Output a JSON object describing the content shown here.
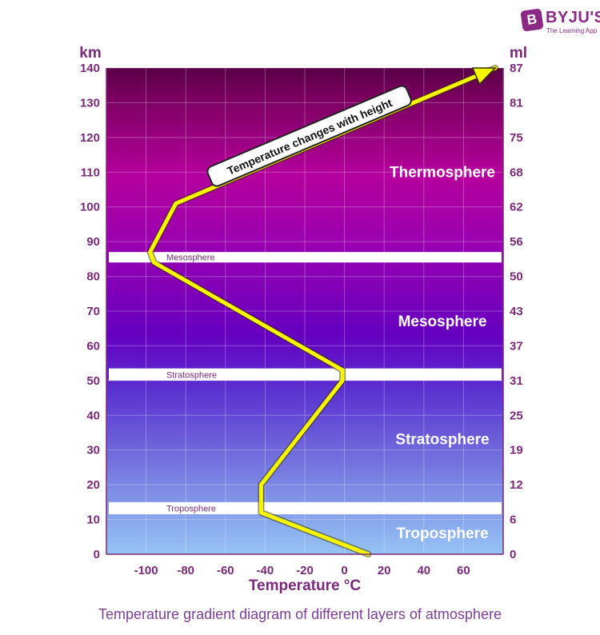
{
  "brand": {
    "name": "BYJU'S",
    "tagline": "The Learning App",
    "badge_letter": "B",
    "color": "#8a2a86"
  },
  "caption": "Temperature gradient diagram of different layers of atmosphere",
  "chart_data": {
    "type": "line",
    "xlabel": "Temperature °C",
    "ylabel_left": "km",
    "ylabel_right": "ml",
    "xlim": [
      -120,
      80
    ],
    "ylim": [
      0,
      140
    ],
    "x_ticks": [
      -100,
      -80,
      -60,
      -40,
      -20,
      0,
      20,
      40,
      60
    ],
    "y_ticks_left": [
      0,
      10,
      20,
      30,
      40,
      50,
      60,
      70,
      80,
      90,
      100,
      110,
      120,
      130,
      140
    ],
    "y_ticks_right": [
      {
        "km": 0,
        "label": "0"
      },
      {
        "km": 10,
        "label": "6"
      },
      {
        "km": 20,
        "label": "12"
      },
      {
        "km": 30,
        "label": "19"
      },
      {
        "km": 40,
        "label": "25"
      },
      {
        "km": 50,
        "label": "31"
      },
      {
        "km": 60,
        "label": "37"
      },
      {
        "km": 70,
        "label": "43"
      },
      {
        "km": 80,
        "label": "50"
      },
      {
        "km": 90,
        "label": "56"
      },
      {
        "km": 100,
        "label": "62"
      },
      {
        "km": 110,
        "label": "68"
      },
      {
        "km": 120,
        "label": "75"
      },
      {
        "km": 130,
        "label": "81"
      },
      {
        "km": 140,
        "label": "87"
      }
    ],
    "grid": true,
    "series": [
      {
        "color": "#f5f500",
        "points": [
          {
            "temp": 12,
            "km": 0
          },
          {
            "temp": -42,
            "km": 12
          },
          {
            "temp": -42,
            "km": 20
          },
          {
            "temp": -1,
            "km": 50
          },
          {
            "temp": -1,
            "km": 53
          },
          {
            "temp": -96,
            "km": 84
          },
          {
            "temp": -98,
            "km": 87
          },
          {
            "temp": -85,
            "km": 101
          },
          {
            "temp": 76,
            "km": 140
          }
        ]
      }
    ],
    "annotation": "Temperature changes with height",
    "layers": [
      {
        "name": "Thermosphere",
        "km": 110
      },
      {
        "name": "Mesosphere",
        "km": 67
      },
      {
        "name": "Stratosphere",
        "km": 33
      },
      {
        "name": "Troposphere",
        "km": 6
      }
    ],
    "boundaries": [
      {
        "name": "Mesosphere",
        "km_low": 84,
        "km_high": 87
      },
      {
        "name": "Stratosphere",
        "km_low": 50,
        "km_high": 53.5
      },
      {
        "name": "Troposphere",
        "km_low": 11.5,
        "km_high": 15
      }
    ],
    "colors": {
      "axis_text": "#7a2a78",
      "top": "#5c0048",
      "thermo": "#b8009e",
      "meso": "#6a00c0",
      "strato": "#5a40d8",
      "tropo": "#90b8f5"
    }
  }
}
